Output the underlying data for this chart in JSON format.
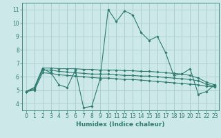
{
  "background_color": "#cce8e8",
  "grid_color": "#aacccc",
  "line_color": "#2d7a6e",
  "xlabel": "Humidex (Indice chaleur)",
  "xlim": [
    -0.5,
    23.5
  ],
  "ylim": [
    3.5,
    11.5
  ],
  "xticks": [
    0,
    1,
    2,
    3,
    4,
    5,
    6,
    7,
    8,
    9,
    10,
    11,
    12,
    13,
    14,
    15,
    16,
    17,
    18,
    19,
    20,
    21,
    22,
    23
  ],
  "yticks": [
    4,
    5,
    6,
    7,
    8,
    9,
    10,
    11
  ],
  "series": [
    {
      "x": [
        0,
        1,
        2,
        3,
        4,
        5,
        6,
        7,
        8,
        9,
        10,
        11,
        12,
        13,
        14,
        15,
        16,
        17,
        18,
        19,
        20,
        21,
        22,
        23
      ],
      "y": [
        4.9,
        5.2,
        6.6,
        6.3,
        5.4,
        5.2,
        6.5,
        3.7,
        3.8,
        5.8,
        11.0,
        10.1,
        10.9,
        10.6,
        9.3,
        8.7,
        9.0,
        7.8,
        6.1,
        6.2,
        6.6,
        4.7,
        4.9,
        5.4
      ]
    },
    {
      "x": [
        0,
        1,
        2,
        3,
        4,
        5,
        6,
        7,
        8,
        9,
        10,
        11,
        12,
        13,
        14,
        15,
        16,
        17,
        18,
        19,
        20,
        21,
        22,
        23
      ],
      "y": [
        4.9,
        5.2,
        6.65,
        6.65,
        6.6,
        6.6,
        6.6,
        6.55,
        6.55,
        6.5,
        6.5,
        6.5,
        6.45,
        6.45,
        6.4,
        6.4,
        6.35,
        6.3,
        6.25,
        6.2,
        6.1,
        5.9,
        5.6,
        5.4
      ]
    },
    {
      "x": [
        0,
        1,
        2,
        3,
        4,
        5,
        6,
        7,
        8,
        9,
        10,
        11,
        12,
        13,
        14,
        15,
        16,
        17,
        18,
        19,
        20,
        21,
        22,
        23
      ],
      "y": [
        4.9,
        5.1,
        6.5,
        6.5,
        6.4,
        6.35,
        6.3,
        6.25,
        6.2,
        6.2,
        6.2,
        6.15,
        6.1,
        6.1,
        6.05,
        6.05,
        6.0,
        5.95,
        5.9,
        5.85,
        5.8,
        5.7,
        5.45,
        5.3
      ]
    },
    {
      "x": [
        0,
        1,
        2,
        3,
        4,
        5,
        6,
        7,
        8,
        9,
        10,
        11,
        12,
        13,
        14,
        15,
        16,
        17,
        18,
        19,
        20,
        21,
        22,
        23
      ],
      "y": [
        4.9,
        5.0,
        6.3,
        6.25,
        6.15,
        6.1,
        6.05,
        6.0,
        5.95,
        5.9,
        5.9,
        5.85,
        5.8,
        5.8,
        5.75,
        5.7,
        5.65,
        5.6,
        5.55,
        5.5,
        5.45,
        5.4,
        5.3,
        5.25
      ]
    }
  ]
}
